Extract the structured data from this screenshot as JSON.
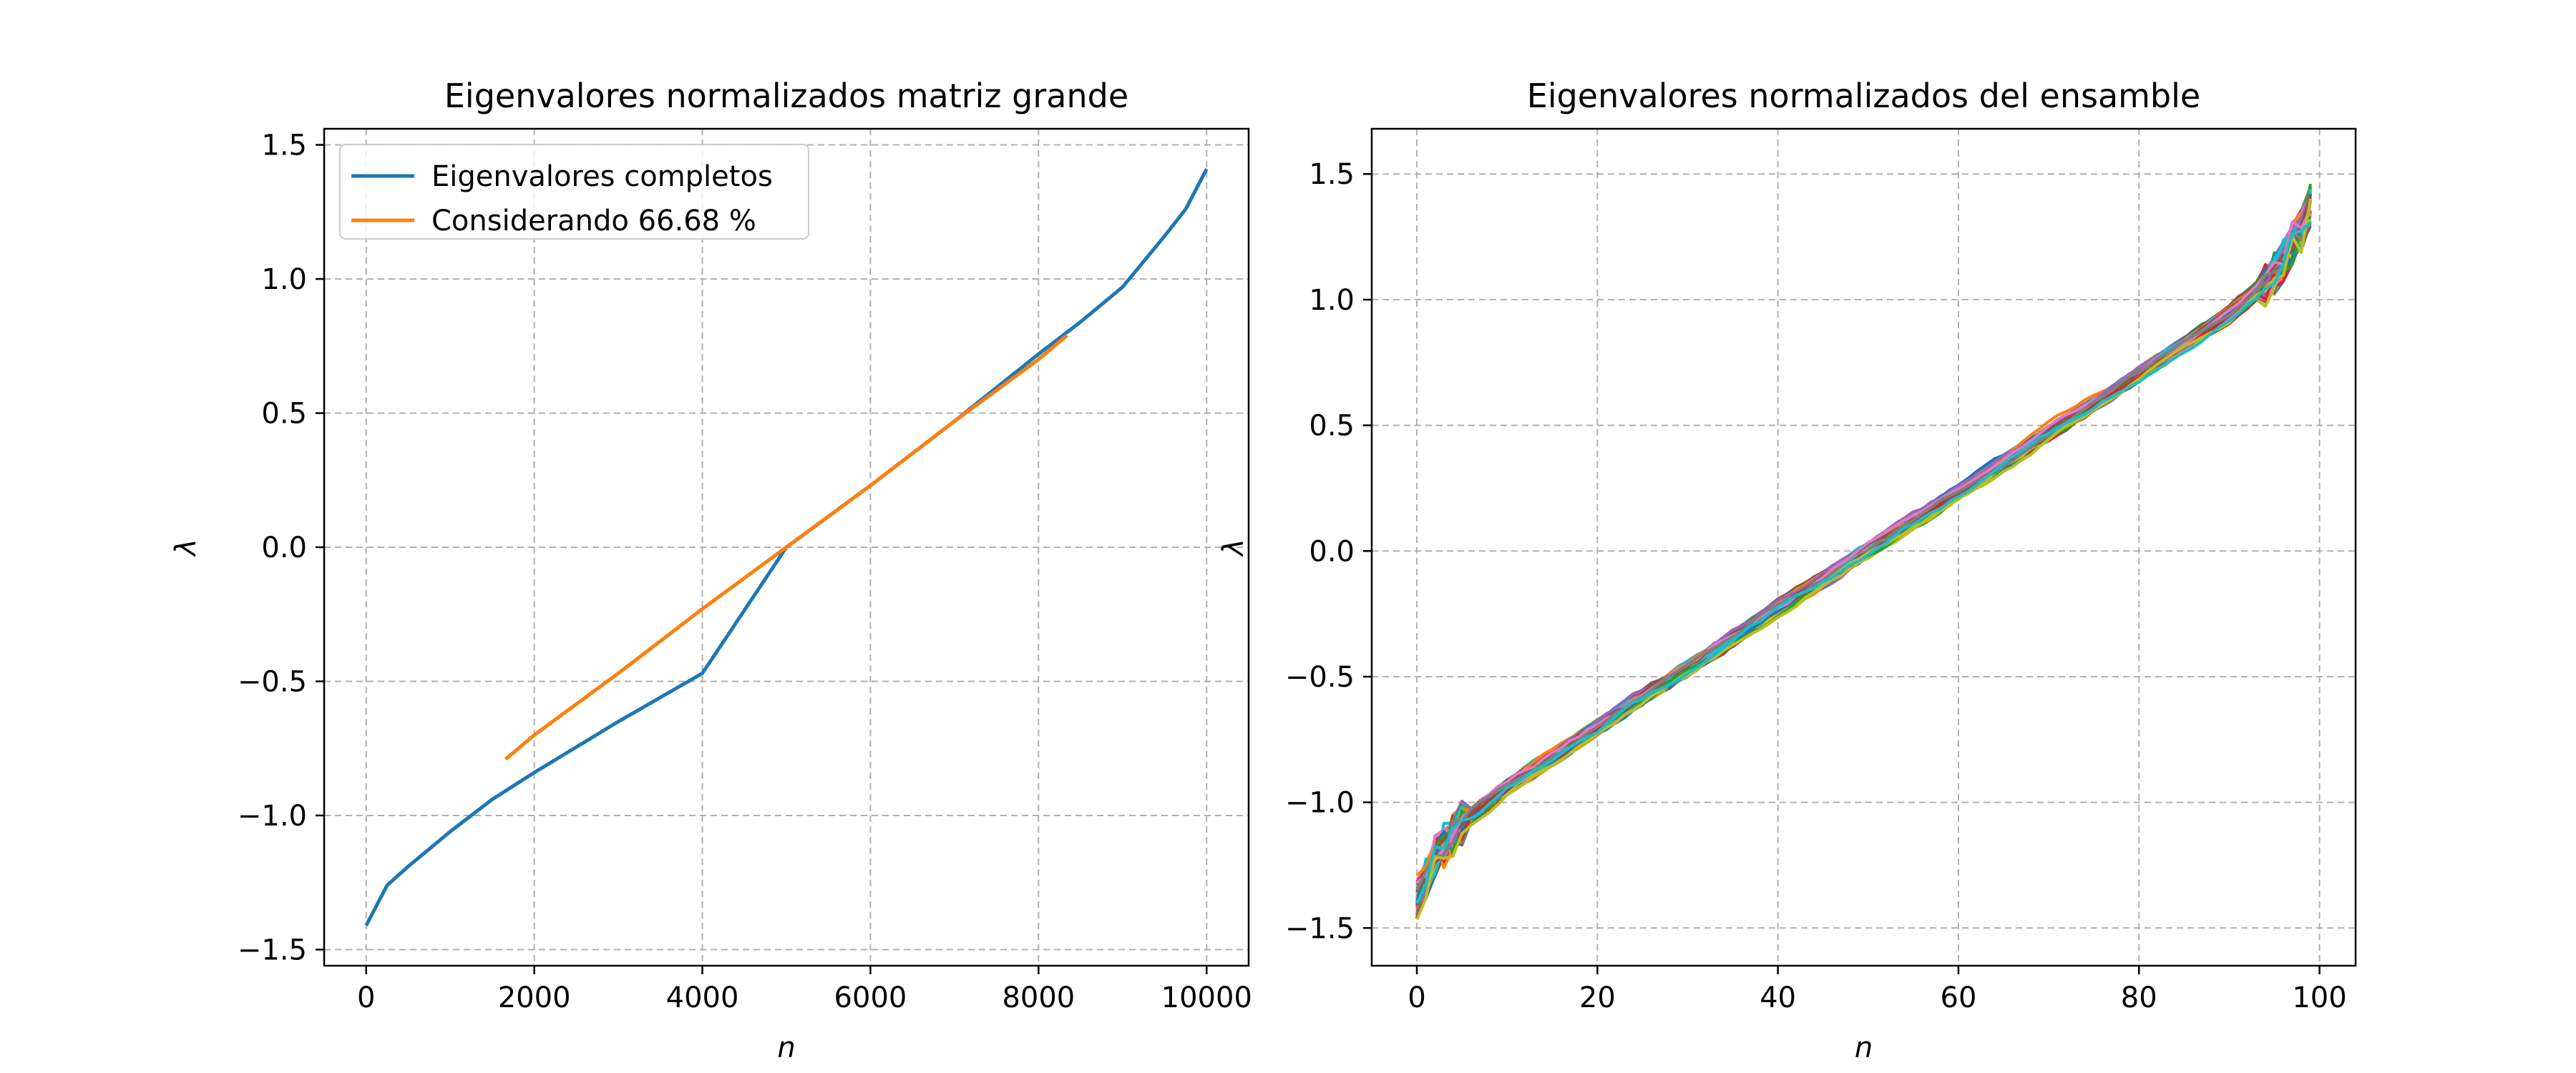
{
  "chart_data": [
    {
      "type": "line",
      "title": "Eigenvalores normalizados matriz grande",
      "xlabel": "n",
      "ylabel": "λ",
      "xlim": [
        -500,
        10500
      ],
      "ylim": [
        -1.56,
        1.56
      ],
      "xticks": [
        0,
        2000,
        4000,
        6000,
        8000,
        10000
      ],
      "xtick_labels": [
        "0",
        "2000",
        "4000",
        "6000",
        "8000",
        "10000"
      ],
      "yticks": [
        -1.5,
        -1.0,
        -0.5,
        0.0,
        0.5,
        1.0,
        1.5
      ],
      "ytick_labels": [
        "−1.5",
        "−1.0",
        "−0.5",
        "0.0",
        "0.5",
        "1.0",
        "1.5"
      ],
      "grid": true,
      "legend_position": "top-left",
      "series": [
        {
          "name": "Eigenvalores completos",
          "color": "#1f77b4",
          "x": [
            0,
            250,
            500,
            1000,
            1500,
            2000,
            3000,
            4000,
            5000,
            6000,
            7000,
            8000,
            8500,
            9000,
            9500,
            9750,
            10000
          ],
          "y": [
            -1.41,
            -1.26,
            -1.19,
            -1.06,
            -0.94,
            -0.84,
            -0.65,
            -0.47,
            0.0,
            0.23,
            0.47,
            0.72,
            0.84,
            0.97,
            1.16,
            1.26,
            1.41
          ]
        },
        {
          "name": "Considerando 66.68 %",
          "color": "#ff7f0e",
          "x": [
            1660,
            2000,
            3000,
            4000,
            5000,
            6000,
            7000,
            8000,
            8340
          ],
          "y": [
            -0.79,
            -0.7,
            -0.47,
            -0.23,
            0.0,
            0.23,
            0.47,
            0.7,
            0.79
          ]
        }
      ]
    },
    {
      "type": "line",
      "title": "Eigenvalores normalizados del ensamble",
      "xlabel": "n",
      "ylabel": "λ",
      "xlim": [
        -5,
        104
      ],
      "ylim": [
        -1.65,
        1.68
      ],
      "xticks": [
        0,
        20,
        40,
        60,
        80,
        100
      ],
      "xtick_labels": [
        "0",
        "20",
        "40",
        "60",
        "80",
        "100"
      ],
      "yticks": [
        -1.5,
        -1.0,
        -0.5,
        0.0,
        0.5,
        1.0,
        1.5
      ],
      "ytick_labels": [
        "−1.5",
        "−1.0",
        "−0.5",
        "0.0",
        "0.5",
        "1.0",
        "1.5"
      ],
      "grid": true,
      "legend_position": "none",
      "n_points": 100,
      "series_colors": [
        "#1f77b4",
        "#ff7f0e",
        "#2ca02c",
        "#d62728",
        "#9467bd",
        "#8c564b",
        "#e377c2",
        "#7f7f7f",
        "#bcbd22",
        "#17becf"
      ],
      "mean_curve": {
        "x": [
          0,
          2,
          5,
          10,
          20,
          30,
          40,
          50,
          60,
          70,
          80,
          90,
          95,
          98,
          99
        ],
        "y": [
          -1.38,
          -1.22,
          -1.08,
          -0.94,
          -0.7,
          -0.47,
          -0.23,
          0.0,
          0.23,
          0.47,
          0.7,
          0.94,
          1.1,
          1.28,
          1.38
        ]
      }
    }
  ]
}
